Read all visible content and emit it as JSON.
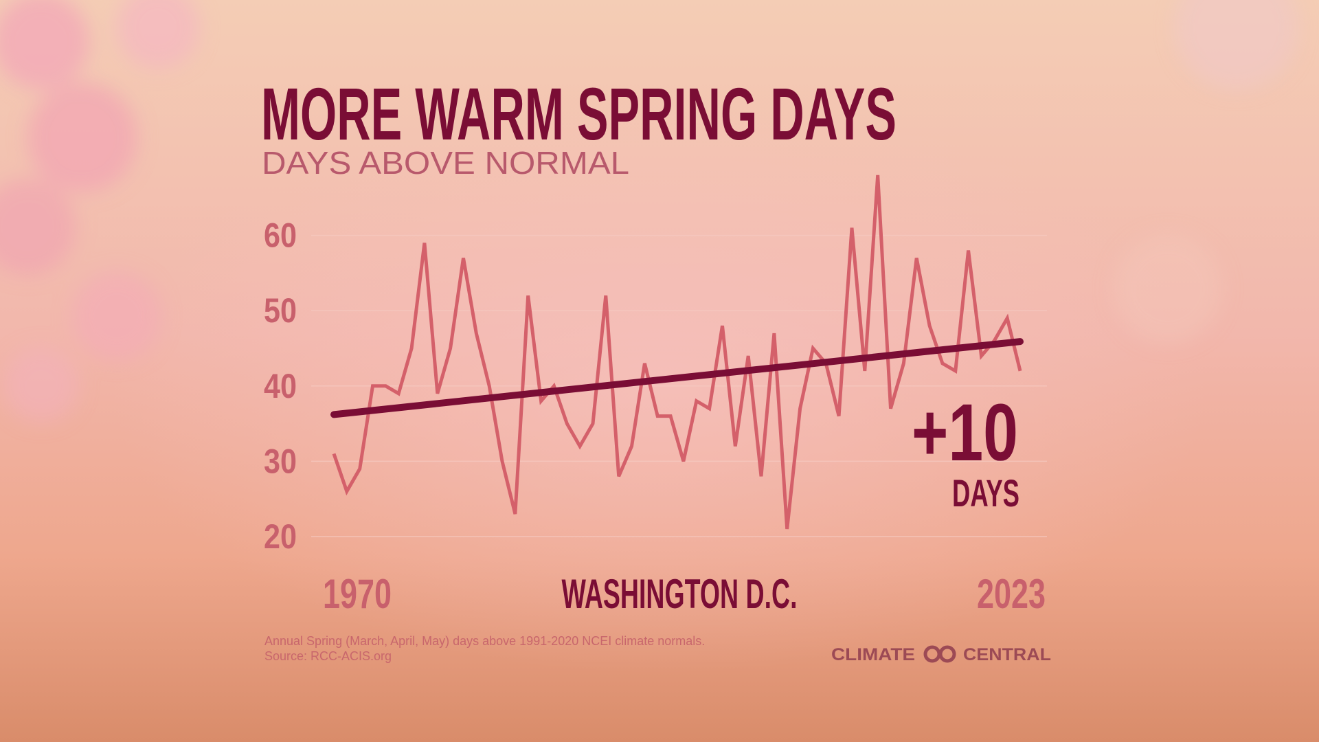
{
  "chart_data": {
    "type": "line",
    "title": "MORE WARM SPRING DAYS",
    "subtitle": "DAYS ABOVE NORMAL",
    "x": [
      1970,
      1971,
      1972,
      1973,
      1974,
      1975,
      1976,
      1977,
      1978,
      1979,
      1980,
      1981,
      1982,
      1983,
      1984,
      1985,
      1986,
      1987,
      1988,
      1989,
      1990,
      1991,
      1992,
      1993,
      1994,
      1995,
      1996,
      1997,
      1998,
      1999,
      2000,
      2001,
      2002,
      2003,
      2004,
      2005,
      2006,
      2007,
      2008,
      2009,
      2010,
      2011,
      2012,
      2013,
      2014,
      2015,
      2016,
      2017,
      2018,
      2019,
      2020,
      2021,
      2022,
      2023
    ],
    "values": [
      31,
      26,
      29,
      40,
      40,
      39,
      45,
      59,
      39,
      45,
      57,
      47,
      40,
      30,
      23,
      52,
      38,
      40,
      35,
      32,
      35,
      52,
      28,
      32,
      43,
      36,
      36,
      30,
      38,
      37,
      48,
      32,
      44,
      28,
      47,
      21,
      37,
      45,
      43,
      36,
      61,
      42,
      68,
      37,
      43,
      57,
      48,
      43,
      42,
      58,
      44,
      46,
      49,
      42
    ],
    "color": "#d4606a",
    "trend": {
      "x": [
        1970,
        2023
      ],
      "values": [
        36.2,
        45.9
      ],
      "color": "#7a0d35"
    },
    "xlim": [
      1970,
      2023
    ],
    "xticks": [
      1970,
      2023
    ],
    "ylim": [
      20,
      70
    ],
    "yticks": [
      20,
      30,
      40,
      50,
      60
    ],
    "grid": true,
    "annotations": {
      "change": "+10",
      "change_unit": "DAYS",
      "location": "WASHINGTON D.C."
    },
    "notes": [
      "Annual Spring (March, April, May) days above 1991-2020 NCEI climate normals.",
      "Source: RCC-ACIS.org"
    ]
  },
  "brand": {
    "left": "CLIMATE",
    "right": "CENTRAL"
  }
}
